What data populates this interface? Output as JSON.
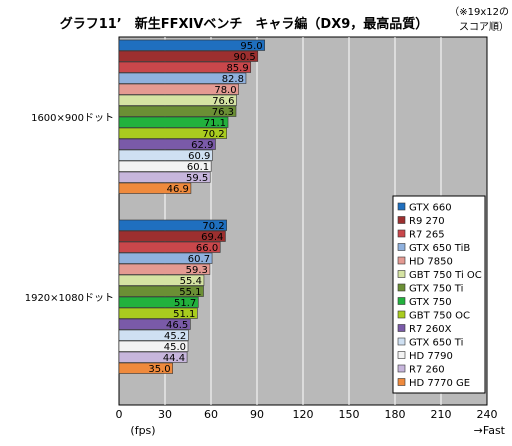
{
  "chart_data": {
    "type": "bar",
    "orientation": "horizontal",
    "title": "グラフ11’　新生FFXIVベンチ　キャラ編（DX9，最高品質）",
    "note": [
      "（※19x12の",
      "スコア順）"
    ],
    "xlabel": "(fps)",
    "xlabel_right": "→Fast",
    "xlim": [
      0,
      240
    ],
    "xticks": [
      0,
      30,
      60,
      90,
      120,
      150,
      180,
      210,
      240
    ],
    "grid": true,
    "legend_position": "bottom-right",
    "categories": [
      "1600×900ドット",
      "1920×1080ドット"
    ],
    "series": [
      {
        "name": "GTX 660",
        "color": "#1f6fbf",
        "values": [
          95.0,
          70.2
        ]
      },
      {
        "name": "R9 270",
        "color": "#9c2f2f",
        "values": [
          90.5,
          69.4
        ]
      },
      {
        "name": "R7 265",
        "color": "#c9474b",
        "values": [
          85.9,
          66.0
        ]
      },
      {
        "name": "GTX 650 TiB",
        "color": "#8fb1de",
        "values": [
          82.8,
          60.7
        ]
      },
      {
        "name": "HD 7850",
        "color": "#e49a92",
        "values": [
          78.0,
          59.3
        ]
      },
      {
        "name": "GBT 750 Ti OC",
        "color": "#d5e3a3",
        "values": [
          76.6,
          55.4
        ]
      },
      {
        "name": "GTX 750 Ti",
        "color": "#6b8f35",
        "values": [
          76.3,
          55.1
        ]
      },
      {
        "name": "GTX 750",
        "color": "#22b13d",
        "values": [
          71.1,
          51.7
        ]
      },
      {
        "name": "GBT 750 OC",
        "color": "#a9cc1f",
        "values": [
          70.2,
          51.1
        ]
      },
      {
        "name": "R7 260X",
        "color": "#7a5aa8",
        "values": [
          62.9,
          46.5
        ]
      },
      {
        "name": "GTX 650 Ti",
        "color": "#cfe0f2",
        "values": [
          60.9,
          45.2
        ]
      },
      {
        "name": "HD 7790",
        "color": "#f3f3f3",
        "values": [
          60.1,
          45.0
        ]
      },
      {
        "name": "R7 260",
        "color": "#c7b6dc",
        "values": [
          59.5,
          44.4
        ]
      },
      {
        "name": "HD 7770 GE",
        "color": "#ef8a3d",
        "values": [
          46.9,
          35.0
        ]
      }
    ],
    "value_labels": [
      [
        "95.0",
        "90.5",
        "85.9",
        "82.8",
        "78.0",
        "76.6",
        "76.3",
        "71.1",
        "70.2",
        "62.9",
        "60.9",
        "60.1",
        "59.5",
        "46.9"
      ],
      [
        "70.2",
        "69.4",
        "66.0",
        "60.7",
        "59.3",
        "55.4",
        "55.1",
        "51.7",
        "51.1",
        "46.5",
        "45.2",
        "45.0",
        "44.4",
        "35.0"
      ]
    ]
  }
}
